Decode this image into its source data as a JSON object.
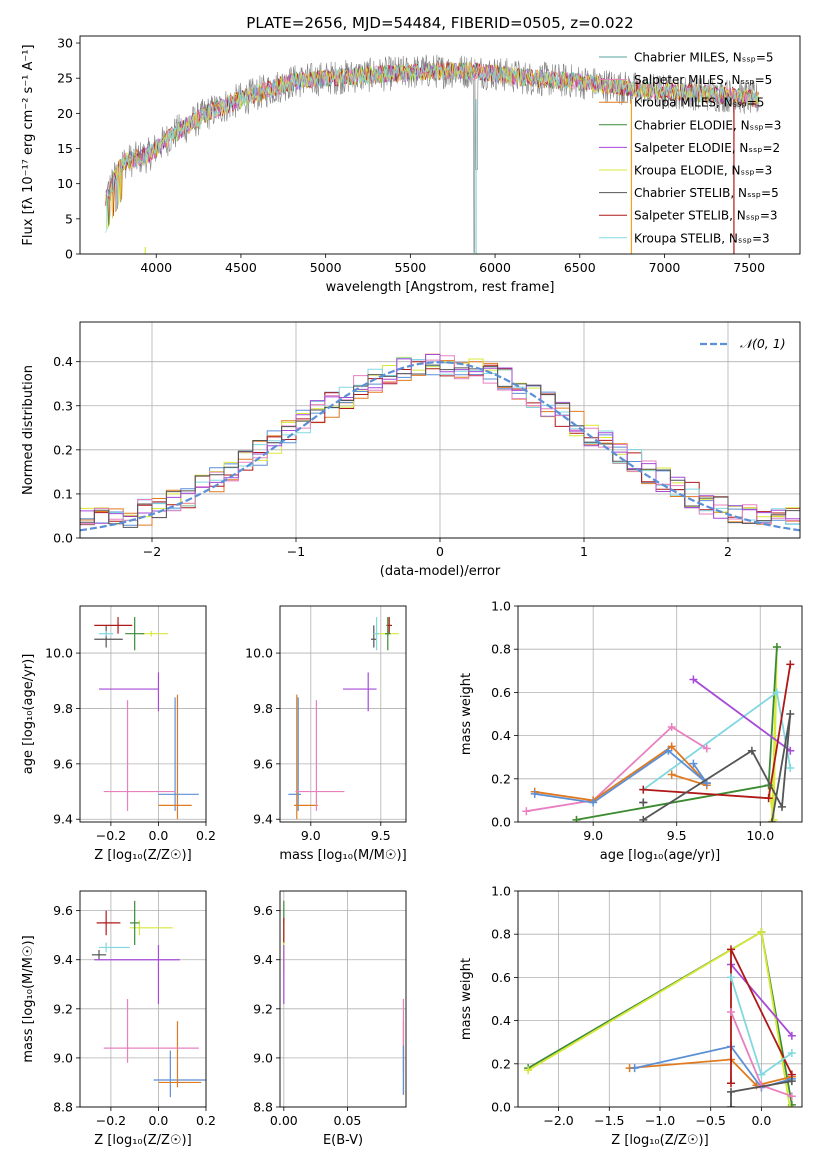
{
  "title": "PLATE=2656, MJD=54484, FIBERID=0505, z=0.022",
  "colors": [
    "#7a7a7a",
    "#f6a020",
    "#e07a20",
    "#3a8a3a",
    "#a64ad8",
    "#d8e838",
    "#555555",
    "#b01818",
    "#80d8e0",
    "#e880c0",
    "#5890e0"
  ],
  "chart_data": [
    {
      "type": "line",
      "id": "spectrum",
      "xlabel": "wavelength [Angstrom, rest frame]",
      "ylabel": "Flux [fλ 10⁻¹⁷ erg cm⁻² s⁻¹ A⁻¹]",
      "xlim": [
        3550,
        7800
      ],
      "ylim": [
        0,
        31
      ],
      "xticks": [
        4000,
        4500,
        5000,
        5500,
        6000,
        6500,
        7000,
        7500
      ],
      "yticks": [
        0,
        5,
        10,
        15,
        20,
        25,
        30
      ],
      "wavelength_range": [
        3700,
        7560
      ],
      "legend": [
        {
          "label": "Chabrier MILES, N_SSP=5",
          "color": "#5aa0a0"
        },
        {
          "label": "Salpeter MILES, N_SSP=5",
          "color": "#e880c0"
        },
        {
          "label": "Kroupa MILES, N_SSP=5",
          "color": "#e07a20"
        },
        {
          "label": "Chabrier ELODIE, N_SSP=3",
          "color": "#3a8a3a"
        },
        {
          "label": "Salpeter ELODIE, N_SSP=2",
          "color": "#a64ad8"
        },
        {
          "label": "Kroupa ELODIE, N_SSP=3",
          "color": "#d8e838"
        },
        {
          "label": "Chabrier STELIB, N_SSP=5",
          "color": "#555555"
        },
        {
          "label": "Salpeter STELIB, N_SSP=3",
          "color": "#b01818"
        },
        {
          "label": "Kroupa STELIB, N_SSP=3",
          "color": "#80d8e0"
        }
      ],
      "continuum": {
        "x": [
          3700,
          3800,
          3950,
          4100,
          4300,
          4500,
          4800,
          5000,
          5300,
          5600,
          5900,
          6200,
          6500,
          6800,
          7100,
          7400,
          7560
        ],
        "y": [
          8,
          13,
          14,
          17,
          20,
          22,
          24.5,
          25,
          25.5,
          26,
          26,
          25,
          24.5,
          23.5,
          23,
          22.5,
          22
        ]
      }
    },
    {
      "type": "histogram",
      "id": "residuals",
      "xlabel": "(data-model)/error",
      "ylabel": "Normed distribution",
      "xlim": [
        -2.5,
        2.5
      ],
      "ylim": [
        0,
        0.49
      ],
      "xticks": [
        -2,
        -1,
        0,
        1,
        2
      ],
      "yticks": [
        0.0,
        0.1,
        0.2,
        0.3,
        0.4
      ],
      "gaussian_label": "𝒩(0, 1)",
      "gaussian_color": "#5b8fd6",
      "bin_width": 0.1,
      "series_colors": [
        "#e07a20",
        "#5b8fd6",
        "#b01818",
        "#d8e838",
        "#80d8e0",
        "#e880c0",
        "#a64ad8",
        "#555555"
      ]
    },
    {
      "type": "errorbar",
      "id": "age_vs_Z",
      "xlabel": "Z [log₁₀(Z/Z☉)]",
      "ylabel": "age  [log₁₀(age/yr)]",
      "xlim": [
        -0.33,
        0.2
      ],
      "ylim": [
        9.39,
        10.17
      ],
      "xticks": [
        -0.2,
        0.0,
        0.2
      ],
      "yticks": [
        9.4,
        9.6,
        9.8,
        10.0
      ],
      "points": [
        {
          "x": -0.22,
          "y": 10.05,
          "xerr": [
            0.05,
            0.07
          ],
          "yerr": [
            0.03,
            0.05
          ],
          "color": "#555555"
        },
        {
          "x": -0.17,
          "y": 10.1,
          "xerr": [
            0.1,
            0.06
          ],
          "yerr": [
            0.03,
            0.03
          ],
          "color": "#b01818"
        },
        {
          "x": -0.03,
          "y": 10.07,
          "xerr": [
            0.05,
            0.07
          ],
          "yerr": [
            0.01,
            0.01
          ],
          "color": "#d8e838"
        },
        {
          "x": -0.1,
          "y": 10.07,
          "xerr": [
            0.04,
            0.04
          ],
          "yerr": [
            0.06,
            0.06
          ],
          "color": "#3a8a3a"
        },
        {
          "x": -0.22,
          "y": 10.07,
          "xerr": [
            0.03,
            0.03
          ],
          "yerr": [
            0.01,
            0.01
          ],
          "color": "#80d8e0"
        },
        {
          "x": 0.0,
          "y": 9.87,
          "xerr": [
            0.25,
            0.0
          ],
          "yerr": [
            0.08,
            0.06
          ],
          "color": "#a64ad8"
        },
        {
          "x": 0.07,
          "y": 9.49,
          "xerr": [
            0.07,
            0.1
          ],
          "yerr": [
            0.06,
            0.35
          ],
          "color": "#5b8fd6"
        },
        {
          "x": 0.08,
          "y": 9.45,
          "xerr": [
            0.08,
            0.06
          ],
          "yerr": [
            0.05,
            0.4
          ],
          "color": "#e07a20"
        },
        {
          "x": -0.13,
          "y": 9.5,
          "xerr": [
            0.1,
            0.2
          ],
          "yerr": [
            0.07,
            0.33
          ],
          "color": "#e880c0"
        }
      ]
    },
    {
      "type": "errorbar",
      "id": "age_vs_mass",
      "xlabel": "mass [log₁₀(M/M☉)]",
      "ylabel": "",
      "xlim": [
        8.78,
        9.68
      ],
      "ylim": [
        9.39,
        10.17
      ],
      "xticks": [
        9.0,
        9.5
      ],
      "yticks": [
        9.4,
        9.6,
        9.8,
        10.0
      ],
      "points": [
        {
          "x": 9.45,
          "y": 10.05,
          "xerr": [
            0.02,
            0.02
          ],
          "yerr": [
            0.03,
            0.05
          ],
          "color": "#555555"
        },
        {
          "x": 9.56,
          "y": 10.1,
          "xerr": [
            0.02,
            0.02
          ],
          "yerr": [
            0.03,
            0.03
          ],
          "color": "#b01818"
        },
        {
          "x": 9.55,
          "y": 10.07,
          "xerr": [
            0.1,
            0.08
          ],
          "yerr": [
            0.01,
            0.01
          ],
          "color": "#d8e838"
        },
        {
          "x": 9.55,
          "y": 10.07,
          "xerr": [
            0.02,
            0.02
          ],
          "yerr": [
            0.06,
            0.06
          ],
          "color": "#3a8a3a"
        },
        {
          "x": 9.47,
          "y": 10.07,
          "xerr": [
            0.02,
            0.02
          ],
          "yerr": [
            0.06,
            0.06
          ],
          "color": "#80d8e0"
        },
        {
          "x": 9.41,
          "y": 9.87,
          "xerr": [
            0.18,
            0.06
          ],
          "yerr": [
            0.08,
            0.06
          ],
          "color": "#a64ad8"
        },
        {
          "x": 8.91,
          "y": 9.49,
          "xerr": [
            0.07,
            0.02
          ],
          "yerr": [
            0.06,
            0.35
          ],
          "color": "#5b8fd6"
        },
        {
          "x": 8.9,
          "y": 9.45,
          "xerr": [
            0.02,
            0.15
          ],
          "yerr": [
            0.05,
            0.4
          ],
          "color": "#e07a20"
        },
        {
          "x": 9.04,
          "y": 9.5,
          "xerr": [
            0.15,
            0.2
          ],
          "yerr": [
            0.07,
            0.33
          ],
          "color": "#e880c0"
        }
      ]
    },
    {
      "type": "line",
      "id": "massweight_vs_age",
      "xlabel": "age  [log₁₀(age/yr)]",
      "ylabel": "mass weight",
      "xlim": [
        8.55,
        10.25
      ],
      "ylim": [
        0,
        1.0
      ],
      "xticks": [
        9.0,
        9.5,
        10.0
      ],
      "yticks": [
        0.0,
        0.2,
        0.4,
        0.6,
        0.8,
        1.0
      ],
      "series": [
        {
          "color": "#d8e838",
          "x": [
            8.9,
            10.05,
            10.08,
            10.1,
            10.07
          ],
          "y": [
            0.01,
            0.17,
            0.01,
            0.81,
            0.0
          ]
        },
        {
          "color": "#3a8a3a",
          "x": [
            8.9,
            10.05,
            10.1
          ],
          "y": [
            0.01,
            0.17,
            0.81
          ]
        },
        {
          "color": "#80d8e0",
          "x": [
            9.3,
            10.1,
            10.18
          ],
          "y": [
            0.15,
            0.6,
            0.25
          ]
        },
        {
          "color": "#e880c0",
          "x": [
            8.6,
            9.0,
            9.47,
            9.68
          ],
          "y": [
            0.05,
            0.1,
            0.44,
            0.34
          ]
        },
        {
          "color": "#e07a20",
          "x": [
            8.65,
            9.0,
            9.47,
            9.68
          ],
          "y": [
            0.14,
            0.1,
            0.35,
            0.18
          ]
        },
        {
          "color": "#5b8fd6",
          "x": [
            8.65,
            9.0,
            9.45,
            9.68
          ],
          "y": [
            0.13,
            0.09,
            0.33,
            0.18
          ]
        },
        {
          "color": "#e07a20",
          "x": [
            9.47,
            9.68
          ],
          "y": [
            0.22,
            0.17
          ]
        },
        {
          "color": "#5b8fd6",
          "x": [
            9.6,
            9.68
          ],
          "y": [
            0.27,
            0.18
          ]
        },
        {
          "color": "#a64ad8",
          "x": [
            9.6,
            10.18
          ],
          "y": [
            0.66,
            0.33
          ]
        },
        {
          "color": "#b01818",
          "x": [
            9.3,
            10.05,
            10.18
          ],
          "y": [
            0.15,
            0.11,
            0.73
          ]
        },
        {
          "color": "#555555",
          "x": [
            9.3,
            9.95,
            10.13,
            10.18,
            10.07
          ],
          "y": [
            0.01,
            0.33,
            0.07,
            0.5,
            0.0
          ]
        },
        {
          "color": "#555555",
          "x": [
            9.3,
            9.3
          ],
          "y": [
            0.09,
            0.09
          ]
        }
      ]
    },
    {
      "type": "errorbar",
      "id": "mass_vs_Z",
      "xlabel": "Z [log₁₀(Z/Z☉)]",
      "ylabel": "mass [log₁₀(M/M☉)]",
      "xlim": [
        -0.33,
        0.2
      ],
      "ylim": [
        8.8,
        9.68
      ],
      "xticks": [
        -0.2,
        0.0,
        0.2
      ],
      "yticks": [
        8.8,
        9.0,
        9.2,
        9.4,
        9.6
      ],
      "points": [
        {
          "x": -0.25,
          "y": 9.42,
          "xerr": [
            0.03,
            0.03
          ],
          "yerr": [
            0.02,
            0.02
          ],
          "color": "#555555"
        },
        {
          "x": -0.22,
          "y": 9.55,
          "xerr": [
            0.04,
            0.06
          ],
          "yerr": [
            0.05,
            0.05
          ],
          "color": "#b01818"
        },
        {
          "x": -0.08,
          "y": 9.53,
          "xerr": [
            0.04,
            0.14
          ],
          "yerr": [
            0.03,
            0.03
          ],
          "color": "#d8e838"
        },
        {
          "x": -0.1,
          "y": 9.55,
          "xerr": [
            0.02,
            0.02
          ],
          "yerr": [
            0.09,
            0.09
          ],
          "color": "#3a8a3a"
        },
        {
          "x": -0.22,
          "y": 9.45,
          "xerr": [
            0.03,
            0.1
          ],
          "yerr": [
            0.02,
            0.02
          ],
          "color": "#80d8e0"
        },
        {
          "x": 0.0,
          "y": 9.4,
          "xerr": [
            0.27,
            0.09
          ],
          "yerr": [
            0.18,
            0.06
          ],
          "color": "#a64ad8"
        },
        {
          "x": 0.05,
          "y": 8.91,
          "xerr": [
            0.07,
            0.15
          ],
          "yerr": [
            0.07,
            0.12
          ],
          "color": "#5b8fd6"
        },
        {
          "x": 0.08,
          "y": 8.9,
          "xerr": [
            0.08,
            0.1
          ],
          "yerr": [
            0.02,
            0.25
          ],
          "color": "#e07a20"
        },
        {
          "x": -0.13,
          "y": 9.04,
          "xerr": [
            0.1,
            0.3
          ],
          "yerr": [
            0.06,
            0.2
          ],
          "color": "#e880c0"
        }
      ]
    },
    {
      "type": "errorbar",
      "id": "mass_vs_EBV",
      "xlabel": "E(B-V)",
      "ylabel": "",
      "xlim": [
        -0.003,
        0.096
      ],
      "ylim": [
        8.8,
        9.68
      ],
      "xticks": [
        0.0,
        0.05
      ],
      "yticks": [
        8.8,
        9.0,
        9.2,
        9.4,
        9.6
      ],
      "points": [
        {
          "x": 0.0,
          "y": 9.55,
          "xerr": [
            0,
            0
          ],
          "yerr": [
            0.09,
            0.09
          ],
          "color": "#3a8a3a"
        },
        {
          "x": 0.0,
          "y": 9.45,
          "xerr": [
            0,
            0
          ],
          "yerr": [
            0.1,
            0.1
          ],
          "color": "#d8e838"
        },
        {
          "x": 0.0,
          "y": 9.4,
          "xerr": [
            0,
            0
          ],
          "yerr": [
            0.18,
            0.06
          ],
          "color": "#a64ad8"
        },
        {
          "x": 0.0,
          "y": 9.52,
          "xerr": [
            0,
            0
          ],
          "yerr": [
            0.05,
            0.05
          ],
          "color": "#b01818"
        },
        {
          "x": 0.094,
          "y": 9.0,
          "xerr": [
            0,
            0
          ],
          "yerr": [
            0.15,
            0.15
          ],
          "color": "#e07a20"
        },
        {
          "x": 0.094,
          "y": 9.04,
          "xerr": [
            0,
            0
          ],
          "yerr": [
            0.1,
            0.2
          ],
          "color": "#e880c0"
        },
        {
          "x": 0.094,
          "y": 8.95,
          "xerr": [
            0,
            0
          ],
          "yerr": [
            0.1,
            0.1
          ],
          "color": "#5b8fd6"
        }
      ]
    },
    {
      "type": "line",
      "id": "massweight_vs_Z",
      "xlabel": "Z [log₁₀(Z/Z☉)]",
      "ylabel": "mass weight",
      "xlim": [
        -2.4,
        0.4
      ],
      "ylim": [
        0,
        1.0
      ],
      "xticks": [
        -2.0,
        -1.5,
        -1.0,
        -0.5,
        0.0
      ],
      "yticks": [
        0.0,
        0.2,
        0.4,
        0.6,
        0.8,
        1.0
      ],
      "series": [
        {
          "color": "#3a8a3a",
          "x": [
            -2.3,
            0.0,
            0.3
          ],
          "y": [
            0.18,
            0.81,
            0.01
          ]
        },
        {
          "color": "#d8e838",
          "x": [
            -2.3,
            0.0,
            0.28
          ],
          "y": [
            0.17,
            0.81,
            0.0
          ]
        },
        {
          "color": "#e07a20",
          "x": [
            -1.3,
            -0.3,
            -0.05,
            0.3
          ],
          "y": [
            0.18,
            0.22,
            0.1,
            0.14
          ]
        },
        {
          "color": "#5b8fd6",
          "x": [
            -1.25,
            -0.3,
            0.0,
            0.3
          ],
          "y": [
            0.18,
            0.28,
            0.09,
            0.13
          ]
        },
        {
          "color": "#a64ad8",
          "x": [
            -0.3,
            0.3
          ],
          "y": [
            0.66,
            0.33
          ]
        },
        {
          "color": "#b01818",
          "x": [
            -0.3,
            -0.3,
            0.3
          ],
          "y": [
            0.11,
            0.73,
            0.15
          ]
        },
        {
          "color": "#80d8e0",
          "x": [
            -0.3,
            0.0,
            0.3
          ],
          "y": [
            0.6,
            0.15,
            0.25
          ]
        },
        {
          "color": "#e880c0",
          "x": [
            -0.3,
            0.0,
            0.3
          ],
          "y": [
            0.44,
            0.1,
            0.05
          ]
        },
        {
          "color": "#555555",
          "x": [
            -0.3,
            -0.3,
            0.3
          ],
          "y": [
            0.0,
            0.07,
            0.12
          ]
        }
      ]
    }
  ]
}
